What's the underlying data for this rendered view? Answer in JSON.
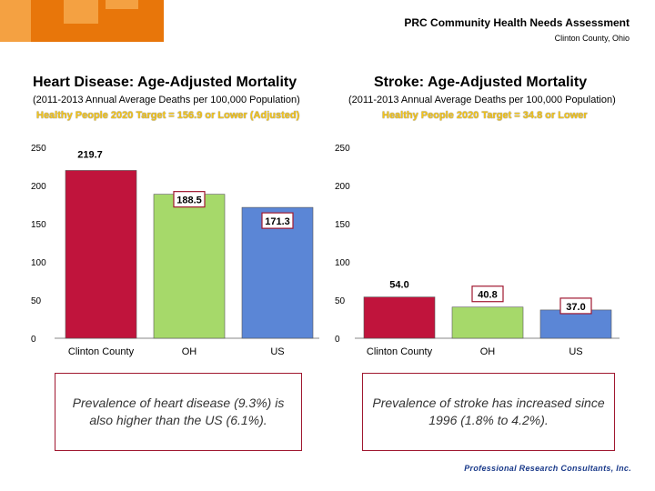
{
  "header": {
    "title": "PRC Community Health Needs Assessment",
    "subtitle": "Clinton County, Ohio"
  },
  "colors": {
    "clinton": "#c0143c",
    "oh": "#a6d96a",
    "us": "#5b86d6",
    "target": "#f5c518",
    "accent": "#e8760a"
  },
  "chart_data": [
    {
      "type": "bar",
      "title": "Heart Disease: Age-Adjusted Mortality",
      "subtitle": "(2011-2013 Annual Average Deaths per 100,000 Population)",
      "target_text": "Healthy People 2020 Target = 156.9 or Lower (Adjusted)",
      "categories": [
        "Clinton County",
        "OH",
        "US"
      ],
      "values": [
        219.7,
        188.5,
        171.3
      ],
      "data_labels": [
        "219.7",
        "188.5",
        "171.3"
      ],
      "yticks": [
        "0",
        "50",
        "100",
        "150",
        "200",
        "250"
      ],
      "ylim": [
        0,
        250
      ]
    },
    {
      "type": "bar",
      "title": "Stroke: Age-Adjusted Mortality",
      "subtitle": "(2011-2013 Annual Average Deaths per 100,000 Population)",
      "target_text": "Healthy People 2020 Target = 34.8 or Lower",
      "categories": [
        "Clinton County",
        "OH",
        "US"
      ],
      "values": [
        54.0,
        40.8,
        37.0
      ],
      "data_labels": [
        "54.0",
        "40.8",
        "37.0"
      ],
      "yticks": [
        "0",
        "50",
        "100",
        "150",
        "200",
        "250"
      ],
      "ylim": [
        0,
        250
      ]
    }
  ],
  "notes": [
    "Prevalence of heart disease (9.3%) is also higher than the US (6.1%).",
    "Prevalence of stroke has increased since 1996 (1.8% to 4.2%)."
  ],
  "footer": {
    "logo_text": "Professional Research Consultants, Inc."
  }
}
